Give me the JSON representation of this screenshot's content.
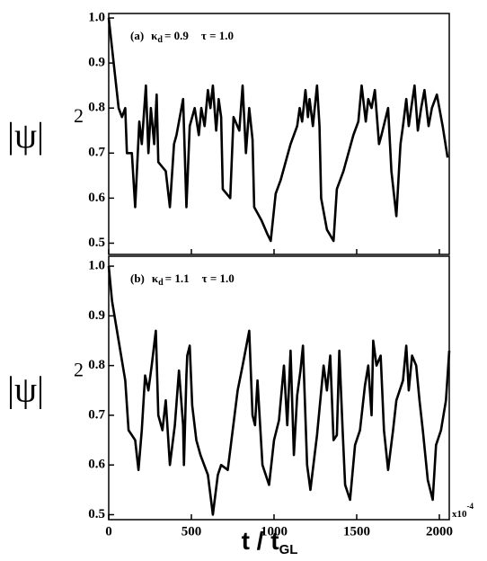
{
  "chart_data": [
    {
      "type": "line",
      "annotation": {
        "label": "(a)",
        "kappa": "κ",
        "kappa_sub": "d",
        "kappa_value": "= 0.9",
        "tau": "τ = 1.0"
      },
      "ylabel": "|ψ|",
      "ylabel_exp": "2",
      "x": [
        0,
        60,
        80,
        100,
        110,
        140,
        160,
        185,
        200,
        225,
        240,
        255,
        275,
        290,
        300,
        345,
        370,
        395,
        410,
        450,
        470,
        490,
        520,
        545,
        560,
        580,
        600,
        615,
        630,
        650,
        665,
        680,
        690,
        735,
        755,
        790,
        810,
        830,
        850,
        870,
        880,
        925,
        960,
        980,
        1010,
        1040,
        1100,
        1140,
        1155,
        1170,
        1190,
        1205,
        1215,
        1235,
        1260,
        1275,
        1285,
        1320,
        1360,
        1380,
        1420,
        1480,
        1510,
        1530,
        1555,
        1570,
        1590,
        1610,
        1635,
        1650,
        1690,
        1710,
        1740,
        1765,
        1780,
        1800,
        1815,
        1830,
        1850,
        1870,
        1890,
        1910,
        1935,
        1955,
        1985,
        2020,
        2050
      ],
      "series": [
        {
          "color": "#000000",
          "values": [
            1.0,
            0.8,
            0.78,
            0.8,
            0.7,
            0.7,
            0.58,
            0.77,
            0.72,
            0.85,
            0.7,
            0.8,
            0.72,
            0.83,
            0.68,
            0.66,
            0.58,
            0.72,
            0.74,
            0.82,
            0.58,
            0.76,
            0.8,
            0.74,
            0.8,
            0.76,
            0.84,
            0.8,
            0.85,
            0.75,
            0.82,
            0.78,
            0.62,
            0.6,
            0.78,
            0.75,
            0.85,
            0.7,
            0.8,
            0.73,
            0.58,
            0.55,
            0.52,
            0.505,
            0.61,
            0.64,
            0.72,
            0.76,
            0.8,
            0.77,
            0.84,
            0.78,
            0.82,
            0.76,
            0.85,
            0.76,
            0.6,
            0.53,
            0.505,
            0.62,
            0.66,
            0.74,
            0.77,
            0.85,
            0.77,
            0.82,
            0.8,
            0.84,
            0.72,
            0.74,
            0.8,
            0.66,
            0.56,
            0.72,
            0.76,
            0.82,
            0.76,
            0.8,
            0.85,
            0.75,
            0.8,
            0.84,
            0.76,
            0.8,
            0.83,
            0.76,
            0.69
          ]
        }
      ],
      "xlim": [
        0,
        2060
      ],
      "xticks": [
        0,
        500,
        1000,
        1500,
        2000
      ],
      "ylim": [
        0.475,
        1.01
      ],
      "yticks": [
        0.5,
        0.6,
        0.7,
        0.8,
        0.9,
        {
          "value": 1,
          "label": "1.0"
        }
      ]
    },
    {
      "type": "line",
      "annotation": {
        "label": "(b)",
        "kappa": "κ",
        "kappa_sub": "d",
        "kappa_value": "= 1.1",
        "tau": "τ = 1.0"
      },
      "ylabel": "|ψ|",
      "ylabel_exp": "2",
      "xlabel": "t / t",
      "xlabel_sub": "GL",
      "scale_note": "x10",
      "scale_exp": "-4",
      "x": [
        0,
        20,
        60,
        100,
        120,
        160,
        180,
        200,
        220,
        240,
        260,
        285,
        300,
        325,
        345,
        370,
        400,
        425,
        450,
        455,
        470,
        475,
        490,
        505,
        530,
        555,
        600,
        630,
        660,
        680,
        720,
        780,
        810,
        850,
        870,
        885,
        900,
        930,
        970,
        1000,
        1030,
        1060,
        1080,
        1100,
        1120,
        1140,
        1160,
        1175,
        1200,
        1220,
        1260,
        1300,
        1320,
        1340,
        1360,
        1380,
        1395,
        1415,
        1430,
        1460,
        1490,
        1520,
        1550,
        1570,
        1590,
        1600,
        1620,
        1645,
        1665,
        1690,
        1720,
        1740,
        1780,
        1800,
        1815,
        1835,
        1860,
        1880,
        1900,
        1930,
        1960,
        1980,
        2010,
        2040,
        2060
      ],
      "series": [
        {
          "color": "#000000",
          "values": [
            1.0,
            0.93,
            0.85,
            0.77,
            0.67,
            0.65,
            0.59,
            0.67,
            0.78,
            0.75,
            0.8,
            0.87,
            0.7,
            0.67,
            0.73,
            0.6,
            0.68,
            0.79,
            0.68,
            0.6,
            0.78,
            0.82,
            0.84,
            0.72,
            0.65,
            0.62,
            0.58,
            0.5,
            0.58,
            0.6,
            0.59,
            0.75,
            0.8,
            0.87,
            0.7,
            0.68,
            0.77,
            0.6,
            0.56,
            0.65,
            0.69,
            0.8,
            0.68,
            0.83,
            0.62,
            0.74,
            0.79,
            0.84,
            0.6,
            0.55,
            0.66,
            0.8,
            0.75,
            0.82,
            0.65,
            0.66,
            0.83,
            0.67,
            0.56,
            0.53,
            0.64,
            0.67,
            0.76,
            0.8,
            0.7,
            0.85,
            0.8,
            0.82,
            0.67,
            0.59,
            0.67,
            0.73,
            0.77,
            0.84,
            0.75,
            0.82,
            0.8,
            0.73,
            0.67,
            0.57,
            0.53,
            0.64,
            0.67,
            0.73,
            0.83
          ]
        }
      ],
      "xlim": [
        0,
        2060
      ],
      "xticks": [
        0,
        500,
        1000,
        1500,
        2000
      ],
      "ylim": [
        0.49,
        1.02
      ],
      "yticks": [
        0.5,
        0.6,
        0.7,
        0.8,
        0.9,
        {
          "value": 1,
          "label": "1.0"
        }
      ]
    }
  ]
}
